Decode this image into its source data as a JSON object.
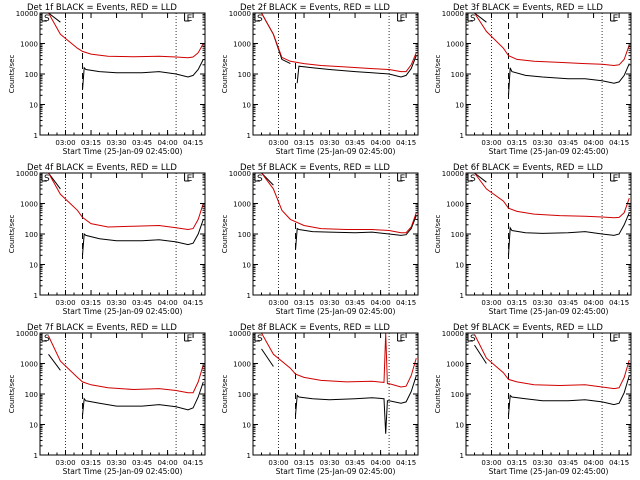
{
  "chart_data": [
    {
      "type": "line",
      "title": "Det 1f  BLACK = Events, RED = LLD",
      "xlabel": "Start Time (25-Jan-09 02:45:00)",
      "ylabel": "Counts/sec",
      "xticks": [
        "03:00",
        "03:15",
        "03:30",
        "03:45",
        "04:00",
        "04:15"
      ],
      "yticks": [
        "1",
        "10",
        "100",
        "1000",
        "10000"
      ],
      "ylim": [
        1,
        10000
      ],
      "xlim": [
        "02:45",
        "04:22"
      ],
      "markers": {
        "s": "S",
        "e": "E"
      },
      "series": [
        {
          "name": "Events",
          "color": "#000000",
          "x": [
            "02:45",
            "02:50",
            "02:57",
            "03:07",
            "03:09",
            "03:10",
            "03:11",
            "03:12",
            "03:20",
            "03:30",
            "03:45",
            "03:55",
            "04:05",
            "04:12",
            "04:15",
            "04:18",
            "04:21"
          ],
          "values": [
            10000,
            10000,
            5000,
            null,
            null,
            30,
            160,
            140,
            120,
            110,
            110,
            120,
            100,
            80,
            90,
            140,
            300
          ]
        },
        {
          "name": "LLD",
          "color": "#d00000",
          "x": [
            "02:45",
            "02:50",
            "02:57",
            "03:07",
            "03:10",
            "03:15",
            "03:25",
            "03:40",
            "03:55",
            "04:05",
            "04:12",
            "04:15",
            "04:18",
            "04:21"
          ],
          "values": [
            10000,
            10000,
            2000,
            700,
            550,
            450,
            380,
            370,
            380,
            360,
            340,
            360,
            500,
            1000
          ]
        }
      ]
    },
    {
      "type": "line",
      "title": "Det 2f  BLACK = Events, RED = LLD",
      "xlabel": "Start Time (25-Jan-09 02:45:00)",
      "ylabel": "Counts/sec",
      "xticks": [
        "03:00",
        "03:15",
        "03:30",
        "03:45",
        "04:00",
        "04:15"
      ],
      "yticks": [
        "1",
        "10",
        "100",
        "1000",
        "10000"
      ],
      "ylim": [
        1,
        10000
      ],
      "xlim": [
        "02:45",
        "04:22"
      ],
      "markers": {
        "s": "S",
        "e": "E"
      },
      "series": [
        {
          "name": "Events",
          "color": "#000000",
          "x": [
            "02:45",
            "02:50",
            "02:57",
            "03:02",
            "03:07",
            "03:10",
            "03:11",
            "03:12",
            "03:20",
            "03:30",
            "03:45",
            "03:55",
            "04:05",
            "04:12",
            "04:15",
            "04:18",
            "04:21"
          ],
          "values": [
            10000,
            10000,
            2000,
            300,
            220,
            null,
            50,
            180,
            160,
            140,
            120,
            110,
            100,
            80,
            90,
            150,
            400
          ]
        },
        {
          "name": "LLD",
          "color": "#d00000",
          "x": [
            "02:45",
            "02:50",
            "02:57",
            "03:02",
            "03:07",
            "03:15",
            "03:25",
            "03:40",
            "03:55",
            "04:05",
            "04:12",
            "04:15",
            "04:18",
            "04:21"
          ],
          "values": [
            10000,
            10000,
            2000,
            350,
            260,
            220,
            190,
            170,
            150,
            140,
            120,
            120,
            200,
            500
          ]
        }
      ]
    },
    {
      "type": "line",
      "title": "Det 3f  BLACK = Events, RED = LLD",
      "xlabel": "Start Time (25-Jan-09 02:45:00)",
      "ylabel": "Counts/sec",
      "xticks": [
        "03:00",
        "03:15",
        "03:30",
        "03:45",
        "04:00",
        "04:15"
      ],
      "yticks": [
        "1",
        "10",
        "100",
        "1000",
        "10000"
      ],
      "ylim": [
        1,
        10000
      ],
      "xlim": [
        "02:45",
        "04:22"
      ],
      "markers": {
        "s": "S",
        "e": "E"
      },
      "series": [
        {
          "name": "Events",
          "color": "#000000",
          "x": [
            "02:45",
            "02:50",
            "02:57",
            "03:07",
            "03:09",
            "03:10",
            "03:11",
            "03:12",
            "03:20",
            "03:30",
            "03:45",
            "03:55",
            "04:05",
            "04:12",
            "04:15",
            "04:18",
            "04:21"
          ],
          "values": [
            10000,
            10000,
            5000,
            null,
            null,
            20,
            160,
            120,
            90,
            80,
            70,
            70,
            60,
            50,
            55,
            90,
            220
          ]
        },
        {
          "name": "LLD",
          "color": "#d00000",
          "x": [
            "02:45",
            "02:50",
            "02:57",
            "03:07",
            "03:10",
            "03:15",
            "03:25",
            "03:40",
            "03:55",
            "04:05",
            "04:12",
            "04:15",
            "04:18",
            "04:21"
          ],
          "values": [
            10000,
            10000,
            2500,
            700,
            400,
            300,
            260,
            240,
            220,
            210,
            190,
            200,
            300,
            900
          ]
        }
      ]
    },
    {
      "type": "line",
      "title": "Det 4f  BLACK = Events, RED = LLD",
      "xlabel": "Start Time (25-Jan-09 02:45:00)",
      "ylabel": "Counts/sec",
      "xticks": [
        "03:00",
        "03:15",
        "03:30",
        "03:45",
        "04:00",
        "04:15"
      ],
      "yticks": [
        "1",
        "10",
        "100",
        "1000",
        "10000"
      ],
      "ylim": [
        1,
        10000
      ],
      "xlim": [
        "02:45",
        "04:22"
      ],
      "markers": {
        "s": "S",
        "e": "E"
      },
      "series": [
        {
          "name": "Events",
          "color": "#000000",
          "x": [
            "02:45",
            "02:50",
            "02:57",
            "03:07",
            "03:09",
            "03:10",
            "03:11",
            "03:12",
            "03:20",
            "03:30",
            "03:45",
            "03:55",
            "04:05",
            "04:12",
            "04:15",
            "04:18",
            "04:21"
          ],
          "values": [
            10000,
            10000,
            3000,
            null,
            null,
            20,
            100,
            90,
            70,
            60,
            60,
            65,
            55,
            45,
            50,
            100,
            300
          ]
        },
        {
          "name": "LLD",
          "color": "#d00000",
          "x": [
            "02:45",
            "02:50",
            "02:57",
            "03:07",
            "03:10",
            "03:15",
            "03:25",
            "03:40",
            "03:55",
            "04:05",
            "04:12",
            "04:15",
            "04:18",
            "04:21"
          ],
          "values": [
            10000,
            10000,
            2000,
            600,
            350,
            220,
            170,
            180,
            190,
            160,
            140,
            150,
            300,
            1000
          ]
        }
      ]
    },
    {
      "type": "line",
      "title": "Det 5f  BLACK = Events, RED = LLD",
      "xlabel": "Start Time (25-Jan-09 02:45:00)",
      "ylabel": "Counts/sec",
      "xticks": [
        "03:00",
        "03:15",
        "03:30",
        "03:45",
        "04:00",
        "04:15"
      ],
      "yticks": [
        "1",
        "10",
        "100",
        "1000",
        "10000"
      ],
      "ylim": [
        1,
        10000
      ],
      "xlim": [
        "02:45",
        "04:22"
      ],
      "markers": {
        "s": "S",
        "e": "E"
      },
      "series": [
        {
          "name": "Events",
          "color": "#000000",
          "x": [
            "02:45",
            "02:50",
            "02:57",
            "03:07",
            "03:09",
            "03:10",
            "03:11",
            "03:12",
            "03:20",
            "03:30",
            "03:45",
            "03:55",
            "04:05",
            "04:12",
            "04:15",
            "04:18",
            "04:21"
          ],
          "values": [
            10000,
            10000,
            4000,
            null,
            null,
            30,
            150,
            140,
            120,
            115,
            110,
            115,
            100,
            90,
            95,
            150,
            400
          ]
        },
        {
          "name": "LLD",
          "color": "#d00000",
          "x": [
            "02:45",
            "02:50",
            "02:57",
            "03:02",
            "03:07",
            "03:15",
            "03:25",
            "03:40",
            "03:55",
            "04:05",
            "04:12",
            "04:15",
            "04:18",
            "04:21"
          ],
          "values": [
            10000,
            10000,
            3000,
            600,
            300,
            190,
            150,
            140,
            140,
            130,
            110,
            110,
            170,
            500
          ]
        }
      ]
    },
    {
      "type": "line",
      "title": "Det 6f  BLACK = Events, RED = LLD",
      "xlabel": "Start Time (25-Jan-09 02:45:00)",
      "ylabel": "Counts/sec",
      "xticks": [
        "03:00",
        "03:15",
        "03:30",
        "03:45",
        "04:00",
        "04:15"
      ],
      "yticks": [
        "1",
        "10",
        "100",
        "1000",
        "10000"
      ],
      "ylim": [
        1,
        10000
      ],
      "xlim": [
        "02:45",
        "04:22"
      ],
      "markers": {
        "s": "S",
        "e": "E"
      },
      "series": [
        {
          "name": "Events",
          "color": "#000000",
          "x": [
            "02:45",
            "02:50",
            "02:57",
            "03:07",
            "03:09",
            "03:10",
            "03:11",
            "03:12",
            "03:20",
            "03:30",
            "03:45",
            "03:55",
            "04:05",
            "04:12",
            "04:15",
            "04:18",
            "04:21"
          ],
          "values": [
            10000,
            10000,
            5000,
            null,
            null,
            20,
            160,
            130,
            110,
            105,
            110,
            120,
            100,
            90,
            100,
            200,
            500
          ]
        },
        {
          "name": "LLD",
          "color": "#d00000",
          "x": [
            "02:45",
            "02:50",
            "02:57",
            "03:07",
            "03:10",
            "03:15",
            "03:25",
            "03:40",
            "03:55",
            "04:05",
            "04:12",
            "04:15",
            "04:18",
            "04:21"
          ],
          "values": [
            10000,
            10000,
            3000,
            1200,
            700,
            550,
            450,
            400,
            380,
            360,
            340,
            350,
            500,
            1500
          ]
        }
      ]
    },
    {
      "type": "line",
      "title": "Det 7f  BLACK = Events, RED = LLD",
      "xlabel": "Start Time (25-Jan-09 02:45:00)",
      "ylabel": "Counts/sec",
      "xticks": [
        "03:00",
        "03:15",
        "03:30",
        "03:45",
        "04:00",
        "04:15"
      ],
      "yticks": [
        "1",
        "10",
        "100",
        "1000",
        "10000"
      ],
      "ylim": [
        1,
        10000
      ],
      "xlim": [
        "02:45",
        "04:22"
      ],
      "markers": {
        "s": "S",
        "e": "E"
      },
      "series": [
        {
          "name": "Events",
          "color": "#000000",
          "x": [
            "02:45",
            "02:50",
            "02:57",
            "03:07",
            "03:09",
            "03:10",
            "03:11",
            "03:12",
            "03:20",
            "03:30",
            "03:45",
            "03:55",
            "04:05",
            "04:12",
            "04:15",
            "04:18",
            "04:21"
          ],
          "values": [
            null,
            2000,
            600,
            null,
            null,
            20,
            70,
            60,
            50,
            40,
            40,
            45,
            38,
            30,
            35,
            80,
            250
          ]
        },
        {
          "name": "LLD",
          "color": "#d00000",
          "x": [
            "02:45",
            "02:50",
            "02:57",
            "03:07",
            "03:10",
            "03:15",
            "03:25",
            "03:40",
            "03:55",
            "04:05",
            "04:12",
            "04:15",
            "04:18",
            "04:21"
          ],
          "values": [
            null,
            8000,
            1200,
            350,
            250,
            200,
            160,
            140,
            150,
            130,
            110,
            110,
            250,
            900
          ]
        }
      ]
    },
    {
      "type": "line",
      "title": "Det 8f  BLACK = Events, RED = LLD",
      "xlabel": "Start Time (25-Jan-09 02:45:00)",
      "ylabel": "Counts/sec",
      "xticks": [
        "03:00",
        "03:15",
        "03:30",
        "03:45",
        "04:00",
        "04:15"
      ],
      "yticks": [
        "1",
        "10",
        "100",
        "1000",
        "10000"
      ],
      "ylim": [
        1,
        10000
      ],
      "xlim": [
        "02:45",
        "04:22"
      ],
      "markers": {
        "s": "S",
        "e": "E"
      },
      "series": [
        {
          "name": "Events",
          "color": "#000000",
          "x": [
            "02:45",
            "02:50",
            "02:57",
            "03:07",
            "03:09",
            "03:10",
            "03:11",
            "03:12",
            "03:20",
            "03:30",
            "03:45",
            "03:55",
            "04:02",
            "04:03",
            "04:04",
            "04:05",
            "04:12",
            "04:15",
            "04:18",
            "04:21"
          ],
          "values": [
            null,
            3000,
            800,
            null,
            null,
            20,
            90,
            80,
            70,
            65,
            70,
            75,
            70,
            5,
            60,
            60,
            50,
            55,
            120,
            400
          ]
        },
        {
          "name": "LLD",
          "color": "#d00000",
          "x": [
            "02:45",
            "02:50",
            "02:57",
            "03:07",
            "03:10",
            "03:15",
            "03:25",
            "03:40",
            "03:55",
            "04:02",
            "04:03",
            "04:04",
            "04:05",
            "04:12",
            "04:15",
            "04:18",
            "04:21"
          ],
          "values": [
            null,
            10000,
            2000,
            700,
            450,
            350,
            280,
            250,
            260,
            240,
            10000,
            220,
            220,
            170,
            180,
            400,
            1500
          ]
        }
      ]
    },
    {
      "type": "line",
      "title": "Det 9f  BLACK = Events, RED = LLD",
      "xlabel": "Start Time (25-Jan-09 02:45:00)",
      "ylabel": "Counts/sec",
      "xticks": [
        "03:00",
        "03:15",
        "03:30",
        "03:45",
        "04:00",
        "04:15"
      ],
      "yticks": [
        "1",
        "10",
        "100",
        "1000",
        "10000"
      ],
      "ylim": [
        1,
        10000
      ],
      "xlim": [
        "02:45",
        "04:22"
      ],
      "markers": {
        "s": "S",
        "e": "E"
      },
      "series": [
        {
          "name": "Events",
          "color": "#000000",
          "x": [
            "02:45",
            "02:50",
            "02:57",
            "03:07",
            "03:09",
            "03:10",
            "03:11",
            "03:12",
            "03:20",
            "03:30",
            "03:45",
            "03:55",
            "04:05",
            "04:12",
            "04:15",
            "04:18",
            "04:21"
          ],
          "values": [
            null,
            4000,
            1000,
            null,
            null,
            20,
            90,
            80,
            70,
            60,
            60,
            65,
            55,
            45,
            50,
            110,
            400
          ]
        },
        {
          "name": "LLD",
          "color": "#d00000",
          "x": [
            "02:45",
            "02:50",
            "02:57",
            "03:07",
            "03:10",
            "03:15",
            "03:25",
            "03:40",
            "03:55",
            "04:05",
            "04:12",
            "04:15",
            "04:18",
            "04:21"
          ],
          "values": [
            null,
            9000,
            1500,
            500,
            300,
            250,
            200,
            190,
            200,
            170,
            150,
            160,
            350,
            1300
          ]
        }
      ]
    }
  ]
}
